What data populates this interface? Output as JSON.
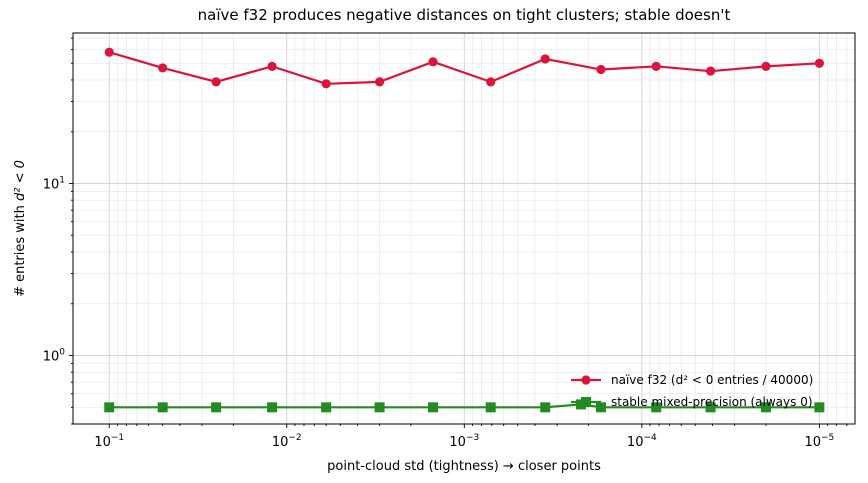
{
  "chart_data": {
    "type": "line",
    "title": "naïve f32 produces negative distances on tight clusters; stable doesn't",
    "xlabel": "point-cloud std (tightness)  →  closer points",
    "ylabel_prefix": "# entries with ",
    "ylabel_math": "d² < 0",
    "xscale": "log",
    "yscale": "log",
    "x_inverted": true,
    "xlim": [
      0.16,
      6.3e-06
    ],
    "ylim": [
      0.4,
      75
    ],
    "grid": true,
    "legend_position": "lower-right",
    "x_ticks": [
      {
        "value": 0.1,
        "base": "10",
        "exp": "−1"
      },
      {
        "value": 0.01,
        "base": "10",
        "exp": "−2"
      },
      {
        "value": 0.001,
        "base": "10",
        "exp": "−3"
      },
      {
        "value": 0.0001,
        "base": "10",
        "exp": "−4"
      },
      {
        "value": 1e-05,
        "base": "10",
        "exp": "−5"
      }
    ],
    "y_ticks": [
      {
        "value": 1,
        "base": "10",
        "exp": "0"
      },
      {
        "value": 10,
        "base": "10",
        "exp": "1"
      }
    ],
    "series": [
      {
        "name": "naïve f32  (d² < 0 entries / 40000)",
        "color": "#dc143c",
        "marker": "circle",
        "x": [
          0.1,
          0.05,
          0.025,
          0.0121,
          0.006,
          0.003,
          0.0015,
          0.00071,
          0.00035,
          0.00017,
          8.3e-05,
          4.1e-05,
          2e-05,
          1e-05
        ],
        "values": [
          58,
          47,
          39,
          48,
          38,
          39,
          51,
          39,
          53,
          46,
          48,
          45,
          48,
          50
        ]
      },
      {
        "name": "stable mixed-precision (always 0)",
        "color": "#228b22",
        "marker": "square",
        "x": [
          0.1,
          0.05,
          0.025,
          0.0121,
          0.006,
          0.003,
          0.0015,
          0.00071,
          0.00035,
          0.00022,
          0.00017,
          8.3e-05,
          4.1e-05,
          2e-05,
          1e-05
        ],
        "values": [
          0.5,
          0.5,
          0.5,
          0.5,
          0.5,
          0.5,
          0.5,
          0.5,
          0.5,
          0.52,
          0.5,
          0.5,
          0.5,
          0.5,
          0.5
        ]
      }
    ]
  }
}
